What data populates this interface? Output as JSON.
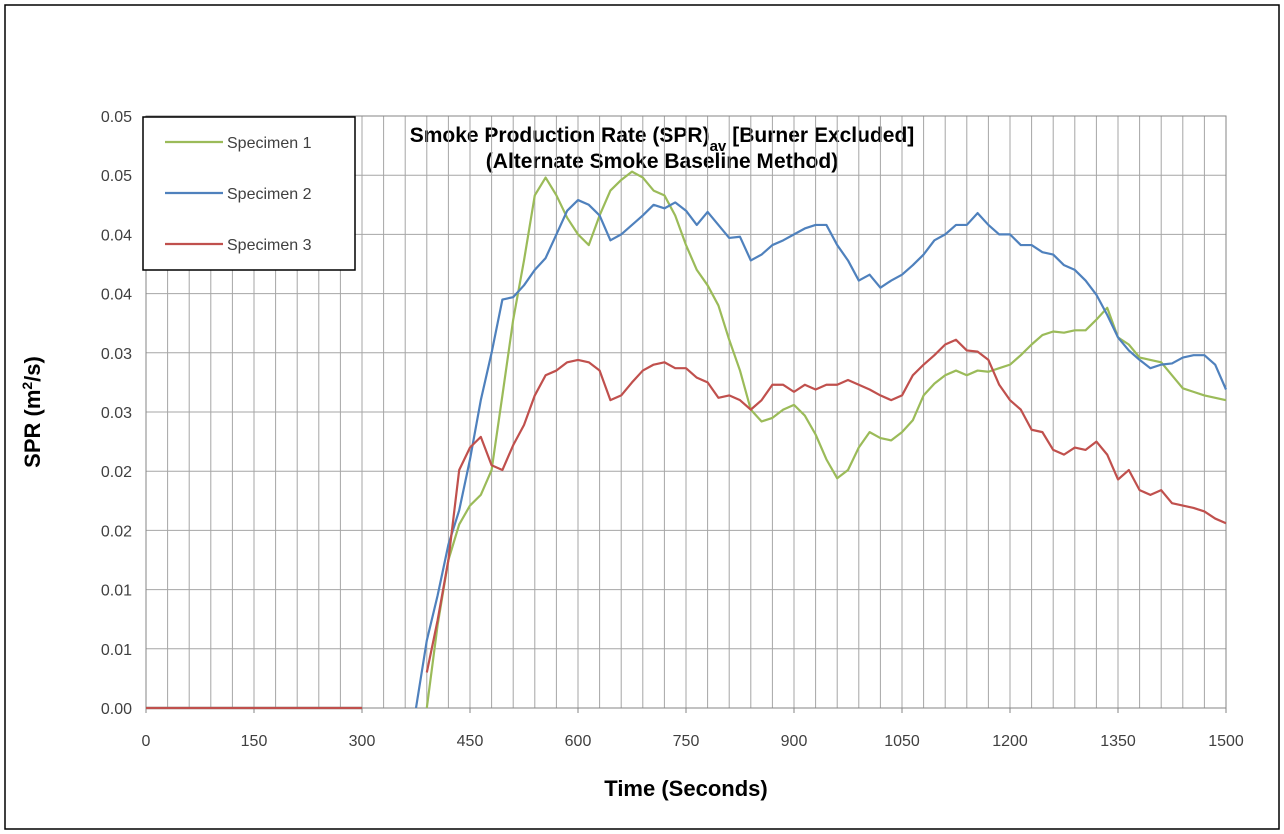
{
  "chart_data": {
    "type": "line",
    "title": {
      "text": "Smoke Production Rate (SPR)",
      "subscript": "av",
      "suffix": "[Burner Excluded]"
    },
    "subtitle": "(Alternate Smoke Baseline Method)",
    "x_label": "Time (Seconds)",
    "y_label": {
      "text": "SPR (m",
      "superscript": "2",
      "suffix": "/s)"
    },
    "x": [
      0,
      15,
      30,
      45,
      60,
      75,
      90,
      105,
      120,
      135,
      150,
      165,
      180,
      195,
      210,
      225,
      240,
      255,
      270,
      285,
      300,
      315,
      330,
      345,
      360,
      375,
      390,
      405,
      420,
      435,
      450,
      465,
      480,
      495,
      510,
      525,
      540,
      555,
      570,
      585,
      600,
      615,
      630,
      645,
      660,
      675,
      690,
      705,
      720,
      735,
      750,
      765,
      780,
      795,
      810,
      825,
      840,
      855,
      870,
      885,
      900,
      915,
      930,
      945,
      960,
      975,
      990,
      1005,
      1020,
      1035,
      1050,
      1065,
      1080,
      1095,
      1110,
      1125,
      1140,
      1155,
      1170,
      1185,
      1200,
      1215,
      1230,
      1245,
      1260,
      1275,
      1290,
      1305,
      1320,
      1335,
      1350,
      1365,
      1380,
      1395,
      1410,
      1425,
      1440,
      1455,
      1470,
      1485,
      1500
    ],
    "series": [
      {
        "name": "Specimen 1",
        "color": "#9bbb59",
        "values": [
          0,
          0,
          0,
          0,
          0,
          0,
          0,
          0,
          0,
          0,
          0,
          0,
          0,
          0,
          0,
          0,
          0,
          0,
          0,
          0,
          0,
          null,
          null,
          null,
          null,
          null,
          0,
          0.007,
          0.0125,
          0.0155,
          0.0171,
          0.018,
          0.0201,
          0.0264,
          0.0328,
          0.0378,
          0.0433,
          0.0448,
          0.0433,
          0.0414,
          0.04,
          0.0391,
          0.0416,
          0.0437,
          0.0446,
          0.0453,
          0.0448,
          0.0437,
          0.0433,
          0.0416,
          0.0391,
          0.037,
          0.0357,
          0.034,
          0.0311,
          0.0285,
          0.0252,
          0.0242,
          0.0245,
          0.0252,
          0.0256,
          0.0247,
          0.0231,
          0.021,
          0.0194,
          0.0201,
          0.022,
          0.0233,
          0.0228,
          0.0226,
          0.0233,
          0.0243,
          0.0264,
          0.0274,
          0.0281,
          0.0285,
          0.0281,
          0.0285,
          0.0284,
          0.0287,
          0.029,
          0.0298,
          0.0307,
          0.0315,
          0.0318,
          0.0317,
          0.0319,
          0.0319,
          0.0328,
          0.0338,
          0.0313,
          0.0307,
          0.0296,
          0.0294,
          0.0292,
          0.0281,
          0.027,
          0.0267,
          0.0264,
          0.0262,
          0.026
        ]
      },
      {
        "name": "Specimen 2",
        "color": "#4f81bd",
        "values": [
          0,
          0,
          0,
          0,
          0,
          0,
          0,
          0,
          0,
          0,
          0,
          0,
          0,
          0,
          0,
          0,
          0,
          0,
          0,
          0,
          0,
          null,
          null,
          null,
          null,
          0,
          0.0057,
          0.0095,
          0.0138,
          0.0167,
          0.021,
          0.026,
          0.03,
          0.0345,
          0.0347,
          0.0357,
          0.037,
          0.038,
          0.04,
          0.042,
          0.0429,
          0.0425,
          0.0416,
          0.0395,
          0.04,
          0.0408,
          0.0416,
          0.0425,
          0.0422,
          0.0427,
          0.042,
          0.0408,
          0.0419,
          0.0408,
          0.0397,
          0.0398,
          0.0378,
          0.0383,
          0.0391,
          0.0395,
          0.04,
          0.0405,
          0.0408,
          0.0408,
          0.0391,
          0.0378,
          0.0361,
          0.0366,
          0.0355,
          0.0361,
          0.0366,
          0.0374,
          0.0383,
          0.0395,
          0.04,
          0.0408,
          0.0408,
          0.0418,
          0.0408,
          0.04,
          0.04,
          0.0391,
          0.0391,
          0.0385,
          0.0383,
          0.0374,
          0.037,
          0.0361,
          0.0349,
          0.0332,
          0.0313,
          0.0302,
          0.0294,
          0.0287,
          0.029,
          0.0291,
          0.0296,
          0.0298,
          0.0298,
          0.029,
          0.0269
        ]
      },
      {
        "name": "Specimen 3",
        "color": "#c0504d",
        "values": [
          0,
          0,
          0,
          0,
          0,
          0,
          0,
          0,
          0,
          0,
          0,
          0,
          0,
          0,
          0,
          0,
          0,
          0,
          0,
          0,
          0,
          null,
          null,
          null,
          null,
          null,
          0.003,
          0.0074,
          0.0125,
          0.0201,
          0.022,
          0.0229,
          0.0205,
          0.0201,
          0.0222,
          0.0239,
          0.0264,
          0.0281,
          0.0285,
          0.0292,
          0.0294,
          0.0292,
          0.0285,
          0.026,
          0.0264,
          0.0275,
          0.0285,
          0.029,
          0.0292,
          0.0287,
          0.0287,
          0.0279,
          0.0275,
          0.0262,
          0.0264,
          0.026,
          0.0252,
          0.026,
          0.0273,
          0.0273,
          0.0267,
          0.0273,
          0.0269,
          0.0273,
          0.0273,
          0.0277,
          0.0273,
          0.0269,
          0.0264,
          0.026,
          0.0264,
          0.0281,
          0.029,
          0.0298,
          0.0307,
          0.0311,
          0.0302,
          0.0301,
          0.0294,
          0.0273,
          0.026,
          0.0252,
          0.0235,
          0.0233,
          0.0218,
          0.0214,
          0.022,
          0.0218,
          0.0225,
          0.0214,
          0.0193,
          0.0201,
          0.0184,
          0.018,
          0.0184,
          0.0173,
          0.0171,
          0.0169,
          0.0166,
          0.016,
          0.0156
        ]
      }
    ],
    "xlim": [
      0,
      1500
    ],
    "xticks": [
      0,
      150,
      300,
      450,
      600,
      750,
      900,
      1050,
      1200,
      1350,
      1500
    ],
    "x_grid_step": 30,
    "ylim": [
      0,
      0.05
    ],
    "yticks": [
      {
        "value": 0,
        "label": "0.00"
      },
      {
        "value": 0.005,
        "label": "0.01"
      },
      {
        "value": 0.01,
        "label": "0.01"
      },
      {
        "value": 0.015,
        "label": "0.02"
      },
      {
        "value": 0.02,
        "label": "0.02"
      },
      {
        "value": 0.025,
        "label": "0.03"
      },
      {
        "value": 0.03,
        "label": "0.03"
      },
      {
        "value": 0.035,
        "label": "0.04"
      },
      {
        "value": 0.04,
        "label": "0.04"
      },
      {
        "value": 0.045,
        "label": "0.05"
      },
      {
        "value": 0.05,
        "label": "0.05"
      }
    ],
    "grid": true,
    "legend": "upper left"
  }
}
